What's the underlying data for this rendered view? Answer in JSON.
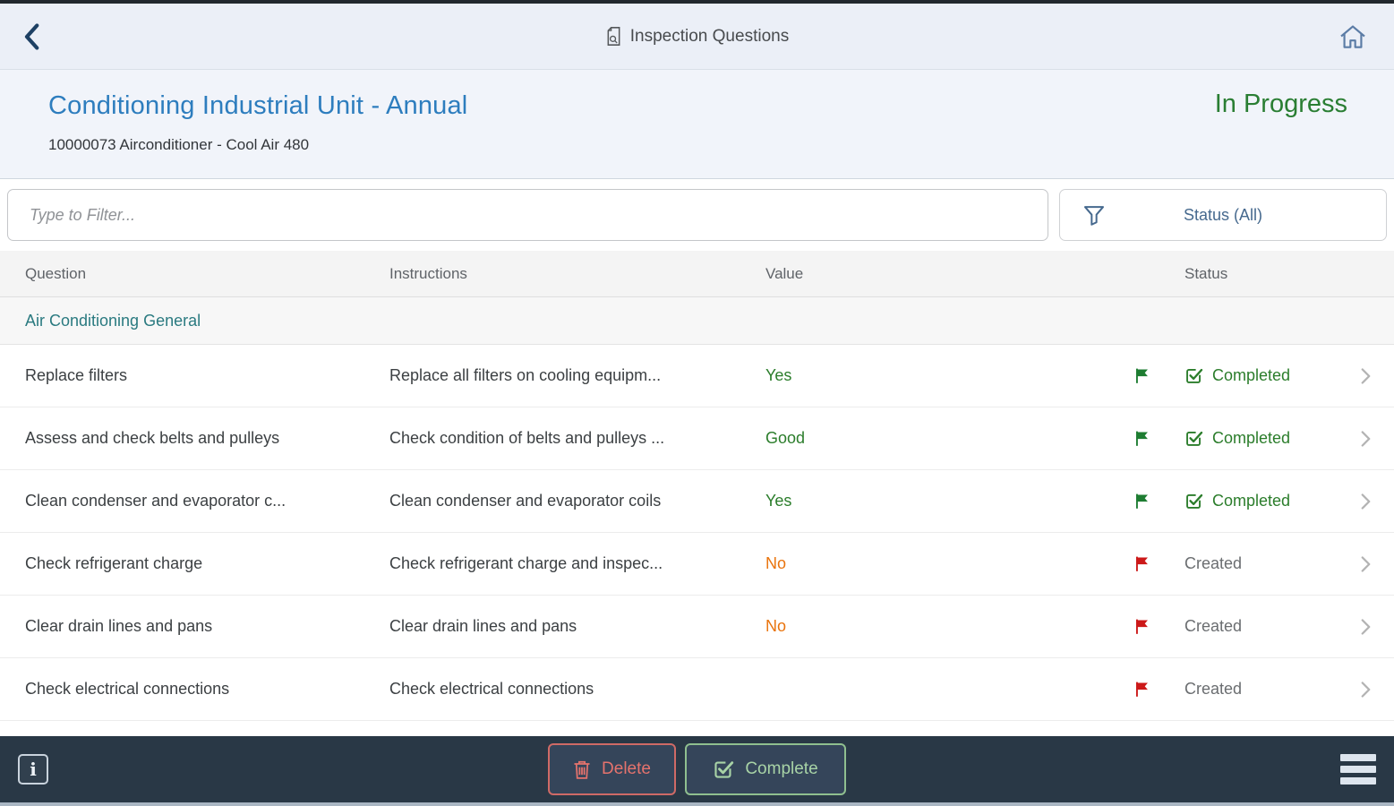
{
  "topbar": {
    "title": "Inspection Questions"
  },
  "page_header": {
    "title": "Conditioning Industrial Unit - Annual",
    "status": "In Progress",
    "subtitle": "10000073 Airconditioner - Cool Air 480"
  },
  "filter_bar": {
    "input_placeholder": "Type to Filter...",
    "status_filter_label": "Status (All)"
  },
  "table": {
    "columns": {
      "question": "Question",
      "instructions": "Instructions",
      "value": "Value",
      "status": "Status"
    },
    "group_header": "Air Conditioning General",
    "rows": [
      {
        "question": "Replace filters",
        "instructions": "Replace all filters on cooling equipm...",
        "value": "Yes",
        "value_color": "green",
        "flag": "green",
        "status": "Completed",
        "status_state": "completed"
      },
      {
        "question": "Assess and check belts and pulleys",
        "instructions": "Check condition of belts and pulleys ...",
        "value": "Good",
        "value_color": "green",
        "flag": "green",
        "status": "Completed",
        "status_state": "completed"
      },
      {
        "question": "Clean condenser and evaporator c...",
        "instructions": "Clean condenser and evaporator coils",
        "value": "Yes",
        "value_color": "green",
        "flag": "green",
        "status": "Completed",
        "status_state": "completed"
      },
      {
        "question": "Check refrigerant charge",
        "instructions": "Check refrigerant charge and inspec...",
        "value": "No",
        "value_color": "orange",
        "flag": "red",
        "status": "Created",
        "status_state": "created"
      },
      {
        "question": "Clear drain lines and pans",
        "instructions": "Clear drain lines and pans",
        "value": "No",
        "value_color": "orange",
        "flag": "red",
        "status": "Created",
        "status_state": "created"
      },
      {
        "question": "Check electrical connections",
        "instructions": "Check electrical connections",
        "value": "",
        "value_color": "green",
        "flag": "red",
        "status": "Created",
        "status_state": "created"
      }
    ]
  },
  "footer": {
    "delete_label": "Delete",
    "complete_label": "Complete"
  },
  "colors": {
    "accent_blue": "#2d7dbe",
    "status_green": "#2b7d2b",
    "value_orange": "#e9730c",
    "group_teal": "#2a7a80",
    "flag_red": "#cc1919",
    "flag_green": "#1e7d32",
    "steel_blue": "#46698e",
    "footer_bg": "#293846"
  }
}
